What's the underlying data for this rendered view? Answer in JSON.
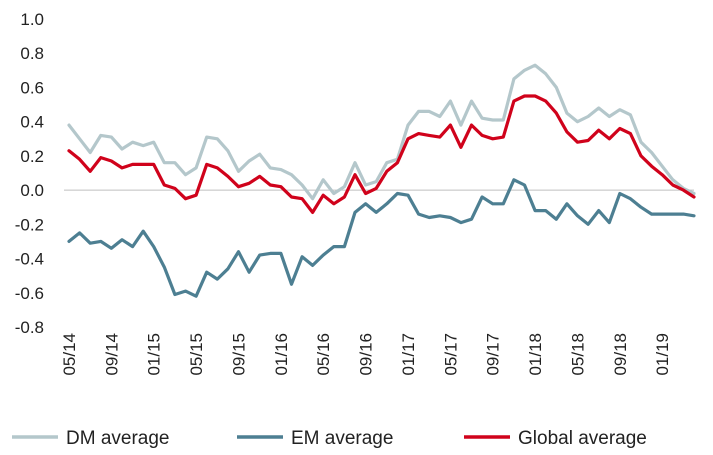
{
  "chart_data": {
    "type": "line",
    "title": "",
    "xlabel": "",
    "ylabel": "",
    "ylim": [
      -0.8,
      1.0
    ],
    "yticks": [
      "1.0",
      "0.8",
      "0.6",
      "0.4",
      "0.2",
      "0.0",
      "-0.2",
      "-0.4",
      "-0.6",
      "-0.8"
    ],
    "ytick_values": [
      1.0,
      0.8,
      0.6,
      0.4,
      0.2,
      0.0,
      -0.2,
      -0.4,
      -0.6,
      -0.8
    ],
    "grid": false,
    "legend_position": "bottom",
    "x": [
      "05/14",
      "06/14",
      "07/14",
      "08/14",
      "09/14",
      "10/14",
      "11/14",
      "12/14",
      "01/15",
      "02/15",
      "03/15",
      "04/15",
      "05/15",
      "06/15",
      "07/15",
      "08/15",
      "09/15",
      "10/15",
      "11/15",
      "12/15",
      "01/16",
      "02/16",
      "03/16",
      "04/16",
      "05/16",
      "06/16",
      "07/16",
      "08/16",
      "09/16",
      "10/16",
      "11/16",
      "12/16",
      "01/17",
      "02/17",
      "03/17",
      "04/17",
      "05/17",
      "06/17",
      "07/17",
      "08/17",
      "09/17",
      "10/17",
      "11/17",
      "12/17",
      "01/18",
      "02/18",
      "03/18",
      "04/18",
      "05/18",
      "06/18",
      "07/18",
      "08/18",
      "09/18",
      "10/18",
      "11/18",
      "12/18",
      "01/19",
      "02/19",
      "03/19",
      "04/19"
    ],
    "xtick_labels": [
      "05/14",
      "09/14",
      "01/15",
      "05/15",
      "09/15",
      "01/16",
      "05/16",
      "09/16",
      "01/17",
      "05/17",
      "09/17",
      "01/18",
      "05/18",
      "09/18",
      "01/19"
    ],
    "series": [
      {
        "name": "DM average",
        "color": "#b4c7cb",
        "values": [
          0.38,
          0.3,
          0.22,
          0.32,
          0.31,
          0.24,
          0.28,
          0.26,
          0.28,
          0.16,
          0.16,
          0.09,
          0.13,
          0.31,
          0.3,
          0.23,
          0.11,
          0.17,
          0.21,
          0.13,
          0.12,
          0.09,
          0.03,
          -0.05,
          0.06,
          -0.02,
          0.02,
          0.16,
          0.03,
          0.05,
          0.16,
          0.18,
          0.38,
          0.46,
          0.46,
          0.43,
          0.52,
          0.38,
          0.52,
          0.42,
          0.41,
          0.41,
          0.65,
          0.7,
          0.73,
          0.68,
          0.6,
          0.45,
          0.4,
          0.43,
          0.48,
          0.43,
          0.47,
          0.44,
          0.28,
          0.22,
          0.14,
          0.06,
          0.01,
          -0.02
        ]
      },
      {
        "name": "EM average",
        "color": "#4d7f92",
        "values": [
          -0.3,
          -0.25,
          -0.31,
          -0.3,
          -0.34,
          -0.29,
          -0.33,
          -0.24,
          -0.33,
          -0.45,
          -0.61,
          -0.59,
          -0.62,
          -0.48,
          -0.52,
          -0.46,
          -0.36,
          -0.48,
          -0.38,
          -0.37,
          -0.37,
          -0.55,
          -0.39,
          -0.44,
          -0.38,
          -0.33,
          -0.33,
          -0.13,
          -0.08,
          -0.13,
          -0.08,
          -0.02,
          -0.03,
          -0.14,
          -0.16,
          -0.15,
          -0.16,
          -0.19,
          -0.17,
          -0.04,
          -0.08,
          -0.08,
          0.06,
          0.03,
          -0.12,
          -0.12,
          -0.17,
          -0.08,
          -0.15,
          -0.2,
          -0.12,
          -0.19,
          -0.02,
          -0.05,
          -0.1,
          -0.14,
          -0.14,
          -0.14,
          -0.14,
          -0.15
        ]
      },
      {
        "name": "Global average",
        "color": "#d0021b",
        "values": [
          0.23,
          0.18,
          0.11,
          0.19,
          0.17,
          0.13,
          0.15,
          0.15,
          0.15,
          0.03,
          0.01,
          -0.05,
          -0.03,
          0.15,
          0.13,
          0.08,
          0.02,
          0.04,
          0.08,
          0.03,
          0.02,
          -0.04,
          -0.05,
          -0.13,
          -0.03,
          -0.08,
          -0.04,
          0.09,
          -0.02,
          0.01,
          0.11,
          0.16,
          0.3,
          0.33,
          0.32,
          0.31,
          0.38,
          0.25,
          0.38,
          0.32,
          0.3,
          0.31,
          0.52,
          0.55,
          0.55,
          0.52,
          0.45,
          0.34,
          0.28,
          0.29,
          0.35,
          0.3,
          0.36,
          0.33,
          0.2,
          0.14,
          0.09,
          0.03,
          0.0,
          -0.04
        ]
      }
    ]
  }
}
